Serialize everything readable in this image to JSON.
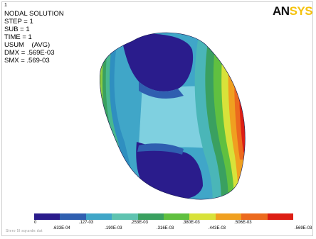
{
  "window": {
    "number": "1"
  },
  "legend": {
    "title": "NODAL SOLUTION",
    "lines": [
      "STEP = 1",
      "SUB = 1",
      "TIME = 1",
      "USUM    (AVG)",
      "DMX = .569E-03",
      "SMX = .569-03"
    ]
  },
  "logo": {
    "part_a": "AN",
    "part_b": "SYS"
  },
  "colorbar": {
    "colors": [
      "#2a1c8c",
      "#2f5fb0",
      "#40a6c8",
      "#5fc3b0",
      "#3aa060",
      "#60c040",
      "#d8e23a",
      "#f0a020",
      "#ec6a1e",
      "#dd1e14"
    ],
    "labels_top": [
      "0",
      ".127-03",
      ".253E-03",
      ".380E-03",
      ".506E-03"
    ],
    "labels_bottom": [
      ".633E-04",
      ".190E-03",
      ".316E-03",
      ".443E-03",
      ".569E-03"
    ]
  },
  "footer": {
    "text": "Stero 5l sqrarde.dat"
  }
}
